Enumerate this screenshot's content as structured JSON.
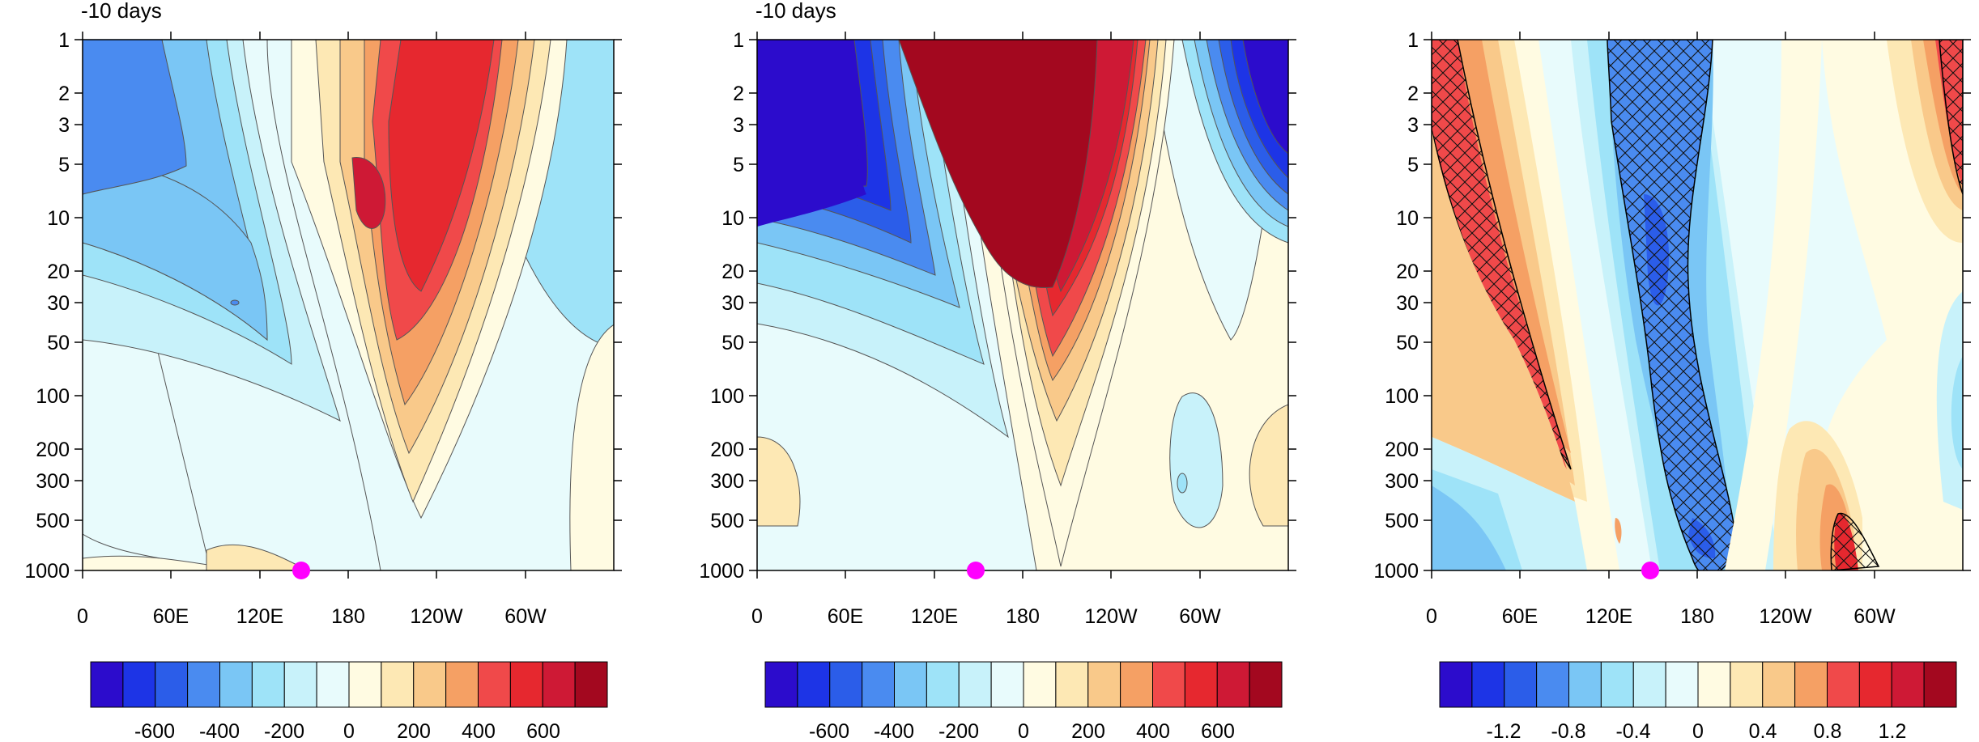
{
  "chart_data": [
    {
      "type": "heatmap",
      "title": "-10 days",
      "x_ticks": [
        "0",
        "60E",
        "120E",
        "180",
        "120W",
        "60W"
      ],
      "x_tick_degrees": [
        0,
        60,
        120,
        180,
        240,
        300
      ],
      "xlim": [
        0,
        360
      ],
      "y_ticks": [
        "1",
        "2",
        "3",
        "5",
        "10",
        "20",
        "30",
        "50",
        "100",
        "200",
        "300",
        "500",
        "1000"
      ],
      "y_tick_values": [
        1,
        2,
        3,
        5,
        10,
        20,
        30,
        50,
        100,
        200,
        300,
        500,
        1000
      ],
      "ylim": [
        1000,
        1
      ],
      "y_scale": "log",
      "colorbar": {
        "levels": [
          -700,
          -600,
          -500,
          -400,
          -300,
          -200,
          -100,
          0,
          100,
          200,
          300,
          400,
          500,
          600,
          700
        ],
        "labels": [
          "-600",
          "-400",
          "-200",
          "0",
          "200",
          "400",
          "600"
        ],
        "label_values": [
          -600,
          -400,
          -200,
          0,
          200,
          400,
          600
        ],
        "colors": [
          "#2c0ccc",
          "#1d34e6",
          "#2b5de9",
          "#4a8bf0",
          "#7ac6f5",
          "#9ee3f8",
          "#c8f2fa",
          "#e8fbfc",
          "#fffbe2",
          "#fde8b4",
          "#f9c98a",
          "#f5a064",
          "#f0494a",
          "#e6282f",
          "#ce1935",
          "#a3081f"
        ]
      },
      "marker": {
        "lon": 145,
        "pressure": 1000,
        "color": "#ff00ff"
      }
    },
    {
      "type": "heatmap",
      "title": "-10 days",
      "x_ticks": [
        "0",
        "60E",
        "120E",
        "180",
        "120W",
        "60W"
      ],
      "x_tick_degrees": [
        0,
        60,
        120,
        180,
        240,
        300
      ],
      "xlim": [
        0,
        360
      ],
      "y_ticks": [
        "1",
        "2",
        "3",
        "5",
        "10",
        "20",
        "30",
        "50",
        "100",
        "200",
        "300",
        "500",
        "1000"
      ],
      "y_tick_values": [
        1,
        2,
        3,
        5,
        10,
        20,
        30,
        50,
        100,
        200,
        300,
        500,
        1000
      ],
      "ylim": [
        1000,
        1
      ],
      "y_scale": "log",
      "colorbar": {
        "levels": [
          -700,
          -600,
          -500,
          -400,
          -300,
          -200,
          -100,
          0,
          100,
          200,
          300,
          400,
          500,
          600,
          700
        ],
        "labels": [
          "-600",
          "-400",
          "-200",
          "0",
          "200",
          "400",
          "600"
        ],
        "label_values": [
          -600,
          -400,
          -200,
          0,
          200,
          400,
          600
        ],
        "colors": [
          "#2c0ccc",
          "#1d34e6",
          "#2b5de9",
          "#4a8bf0",
          "#7ac6f5",
          "#9ee3f8",
          "#c8f2fa",
          "#e8fbfc",
          "#fffbe2",
          "#fde8b4",
          "#f9c98a",
          "#f5a064",
          "#f0494a",
          "#e6282f",
          "#ce1935",
          "#a3081f"
        ]
      },
      "marker": {
        "lon": 148,
        "pressure": 1000,
        "color": "#ff00ff"
      }
    },
    {
      "type": "heatmap",
      "title": "",
      "x_ticks": [
        "0",
        "60E",
        "120E",
        "180",
        "120W",
        "60W"
      ],
      "x_tick_degrees": [
        0,
        60,
        120,
        180,
        240,
        300
      ],
      "xlim": [
        0,
        360
      ],
      "y_ticks": [
        "1",
        "2",
        "3",
        "5",
        "10",
        "20",
        "30",
        "50",
        "100",
        "200",
        "300",
        "500",
        "1000"
      ],
      "y_tick_values": [
        1,
        2,
        3,
        5,
        10,
        20,
        30,
        50,
        100,
        200,
        300,
        500,
        1000
      ],
      "ylim": [
        1000,
        1
      ],
      "y_scale": "log",
      "hatching": "significance (cross-hatched regions)",
      "colorbar": {
        "levels": [
          -1.4,
          -1.2,
          -1.0,
          -0.8,
          -0.6,
          -0.4,
          -0.2,
          0,
          0.2,
          0.4,
          0.6,
          0.8,
          1.0,
          1.2,
          1.4
        ],
        "labels": [
          "-1.2",
          "-0.8",
          "-0.4",
          "0",
          "0.4",
          "0.8",
          "1.2"
        ],
        "label_values": [
          -1.2,
          -0.8,
          -0.4,
          0,
          0.4,
          0.8,
          1.2
        ],
        "colors": [
          "#2c0ccc",
          "#1d34e6",
          "#2b5de9",
          "#4a8bf0",
          "#7ac6f5",
          "#9ee3f8",
          "#c8f2fa",
          "#e8fbfc",
          "#fffbe2",
          "#fde8b4",
          "#f9c98a",
          "#f5a064",
          "#f0494a",
          "#e6282f",
          "#ce1935",
          "#a3081f"
        ]
      },
      "marker": {
        "lon": 148,
        "pressure": 1000,
        "color": "#ff00ff"
      }
    }
  ]
}
